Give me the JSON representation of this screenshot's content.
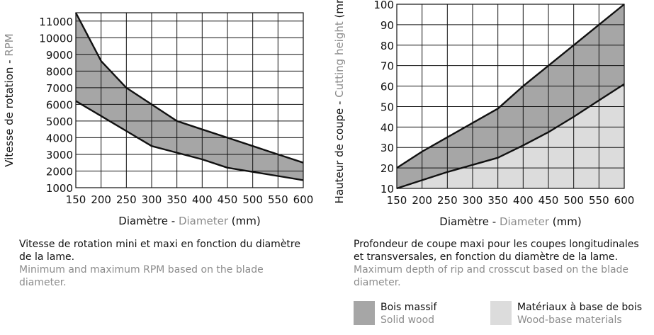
{
  "colors": {
    "solid_wood_fill": "#a6a6a6",
    "wood_base_fill": "#dcdcdc",
    "line": "#111111",
    "grid": "#111111",
    "english_text": "#8c8c8c"
  },
  "chart_data": [
    {
      "type": "area",
      "ylabel_fr": "Vitesse de rotation - ",
      "ylabel_en": "RPM",
      "xlabel_fr": "Diamètre - ",
      "xlabel_en": "Diameter",
      "xlabel_unit": " (mm)",
      "xlim": [
        150,
        600
      ],
      "ylim": [
        1000,
        11500
      ],
      "x_ticks": [
        150,
        200,
        250,
        300,
        350,
        400,
        450,
        500,
        550,
        600
      ],
      "y_ticks": [
        1000,
        2000,
        3000,
        4000,
        5000,
        6000,
        7000,
        8000,
        9000,
        10000,
        11000
      ],
      "grid": true,
      "series": [
        {
          "id": "max_rpm",
          "x": [
            150,
            200,
            250,
            300,
            350,
            400,
            450,
            500,
            550,
            600
          ],
          "values": [
            11500,
            8600,
            7000,
            6000,
            5000,
            4500,
            4000,
            3500,
            3000,
            2500
          ]
        },
        {
          "id": "min_rpm",
          "x": [
            150,
            200,
            250,
            300,
            350,
            400,
            450,
            500,
            550,
            600
          ],
          "values": [
            6200,
            5300,
            4400,
            3500,
            3100,
            2700,
            2200,
            1950,
            1700,
            1450
          ]
        }
      ],
      "caption_fr": "Vitesse de rotation mini et maxi en fonction du diamètre de la lame.",
      "caption_en": "Minimum and maximum RPM based on the blade diameter."
    },
    {
      "type": "area",
      "ylabel_fr": "Hauteur de coupe - ",
      "ylabel_en": "Cutting height",
      "ylabel_unit": " (mm)",
      "xlabel_fr": "Diamètre - ",
      "xlabel_en": "Diameter",
      "xlabel_unit": " (mm)",
      "xlim": [
        150,
        600
      ],
      "ylim": [
        10,
        100
      ],
      "x_ticks": [
        150,
        200,
        250,
        300,
        350,
        400,
        450,
        500,
        550,
        600
      ],
      "y_ticks": [
        10,
        20,
        30,
        40,
        50,
        60,
        70,
        80,
        90,
        100
      ],
      "grid": true,
      "series": [
        {
          "name": "Bois massif",
          "x": [
            150,
            200,
            250,
            300,
            350,
            400,
            450,
            500,
            550,
            600
          ],
          "values": [
            20,
            28,
            35,
            42,
            49,
            60,
            70,
            80,
            90,
            100
          ]
        },
        {
          "name": "Matériaux à base de bois",
          "x": [
            150,
            200,
            250,
            300,
            350,
            400,
            450,
            500,
            550,
            600
          ],
          "values": [
            10,
            14,
            18,
            21.5,
            25,
            31,
            37.5,
            45,
            53,
            61
          ]
        }
      ],
      "caption_fr": "Profondeur de coupe maxi pour les coupes longitudinales et transversales, en fonction du diamètre de la lame.",
      "caption_en": "Maximum depth of rip and crosscut based on the blade diameter."
    }
  ],
  "legend": [
    {
      "fr": "Bois massif",
      "en": "Solid wood"
    },
    {
      "fr": "Matériaux à base de bois",
      "en": "Wood-base materials"
    }
  ]
}
